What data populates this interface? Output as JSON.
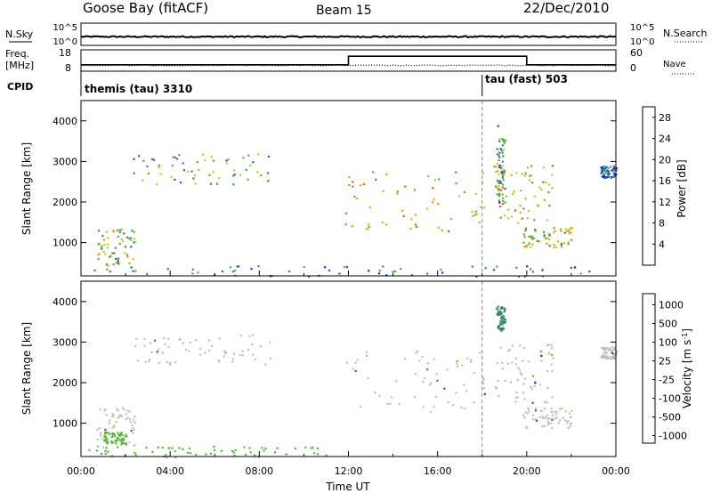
{
  "header": {
    "station": "Goose Bay (fitACF)",
    "beam": "Beam 15",
    "date": "22/Dec/2010"
  },
  "top_panels": {
    "nsky_label": "N.Sky",
    "nsky_ticks": [
      "10^5",
      "10^0"
    ],
    "nsearch_label": "N.Search",
    "nsearch_ticks": [
      "10^5",
      "10^0"
    ],
    "freq_label": "Freq.",
    "freq_unit": "[MHz]",
    "freq_ticks": [
      "18",
      "8"
    ],
    "nave_label": "Nave",
    "nave_ticks": [
      "60",
      "0"
    ],
    "cpid_label": "CPID",
    "cpid_segments": [
      {
        "label": "themis (tau) 3310",
        "start_hour": 0
      },
      {
        "label": "tau (fast) 503",
        "start_hour": 18
      }
    ],
    "freq_steps": [
      {
        "from": 0,
        "to": 12,
        "level": 0.3
      },
      {
        "from": 12,
        "to": 20,
        "level": 0.7
      },
      {
        "from": 20,
        "to": 24,
        "level": 0.3
      }
    ]
  },
  "chart_data": [
    {
      "type": "heatmap",
      "name": "power",
      "ylabel": "Slant Range [km]",
      "xlim": [
        0,
        24
      ],
      "ylim": [
        180,
        4500
      ],
      "yticks": [
        1000,
        2000,
        3000,
        4000
      ],
      "colorbar_label": "Power [dB]",
      "colorbar_ticks": [
        "4",
        "8",
        "12",
        "16",
        "20",
        "24",
        "28"
      ],
      "colorbar_range": [
        0,
        30
      ],
      "colors": [
        "#1030e0",
        "#2a5fa8",
        "#3d8a70",
        "#58b040",
        "#c8c820",
        "#f0a000",
        "#ff5010",
        "#e00000"
      ],
      "patches": [
        {
          "t0": 2.3,
          "t1": 8.6,
          "r0": 2450,
          "r1": 3200,
          "value": 12
        },
        {
          "t0": 0.7,
          "t1": 2.4,
          "r0": 400,
          "r1": 1400,
          "value": 14
        },
        {
          "t0": 11.7,
          "t1": 18.2,
          "r0": 1300,
          "r1": 2800,
          "value": 18
        },
        {
          "t0": 18.5,
          "t1": 21.2,
          "r0": 1500,
          "r1": 3000,
          "value": 17
        },
        {
          "t0": 19.8,
          "t1": 22.0,
          "r0": 900,
          "r1": 1400,
          "value": 16
        },
        {
          "t0": 18.6,
          "t1": 19.0,
          "r0": 2000,
          "r1": 3900,
          "value": 10
        },
        {
          "t0": 23.3,
          "t1": 24.0,
          "r0": 2600,
          "r1": 2900,
          "value": 6
        },
        {
          "t0": 0.3,
          "t1": 24.0,
          "r0": 180,
          "r1": 450,
          "value": 8
        }
      ]
    },
    {
      "type": "heatmap",
      "name": "velocity",
      "ylabel": "Slant Range [km]",
      "xlabel": "Time UT",
      "xlim": [
        0,
        24
      ],
      "ylim": [
        180,
        4500
      ],
      "xticks": [
        "00:00",
        "04:00",
        "08:00",
        "12:00",
        "16:00",
        "20:00",
        "00:00"
      ],
      "yticks": [
        1000,
        2000,
        3000,
        4000
      ],
      "colorbar_label": "Velocity [m s^-1]",
      "colorbar_ticks": [
        "1000",
        "500",
        "100",
        "25",
        "-25",
        "-100",
        "-500",
        "-1000"
      ],
      "colors": [
        "#1030d0",
        "#2860a0",
        "#3a8a60",
        "#5ab838",
        "#c0c0b8",
        "#f0c000",
        "#f08000",
        "#e81010"
      ],
      "patches": [
        {
          "t0": 2.3,
          "t1": 8.6,
          "r0": 2450,
          "r1": 3200,
          "value": 0
        },
        {
          "t0": 0.7,
          "t1": 2.4,
          "r0": 400,
          "r1": 1400,
          "value": 0
        },
        {
          "t0": 1.0,
          "t1": 2.0,
          "r0": 500,
          "r1": 800,
          "value": 60
        },
        {
          "t0": 11.7,
          "t1": 18.2,
          "r0": 1300,
          "r1": 2800,
          "value": 0
        },
        {
          "t0": 18.5,
          "t1": 21.2,
          "r0": 1500,
          "r1": 3000,
          "value": 0
        },
        {
          "t0": 19.8,
          "t1": 22.0,
          "r0": 900,
          "r1": 1400,
          "value": 0
        },
        {
          "t0": 18.6,
          "t1": 19.0,
          "r0": 3300,
          "r1": 3900,
          "value": 80
        },
        {
          "t0": 23.3,
          "t1": 24.0,
          "r0": 2600,
          "r1": 2900,
          "value": 0
        },
        {
          "t0": 0.3,
          "t1": 11.0,
          "r0": 180,
          "r1": 450,
          "value": 50
        }
      ]
    }
  ]
}
